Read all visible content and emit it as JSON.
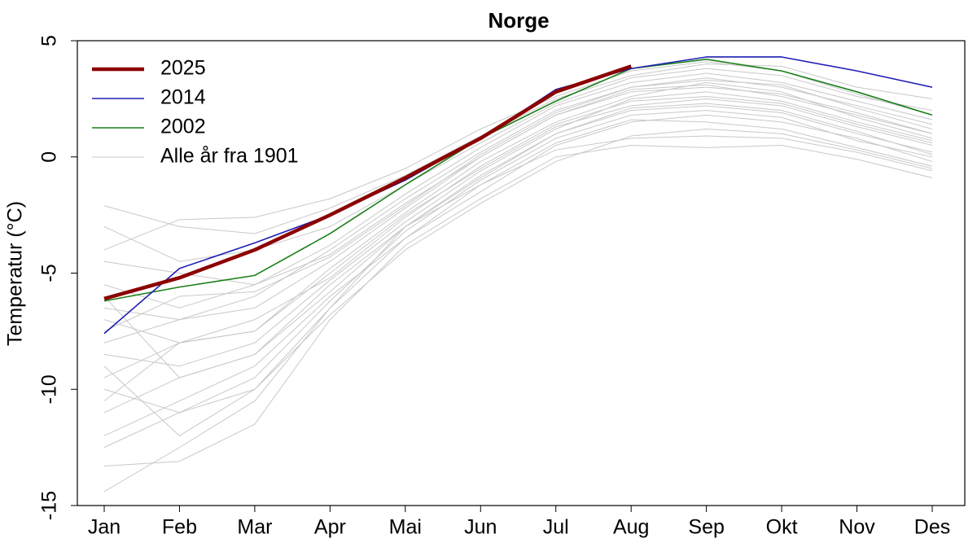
{
  "chart_data": {
    "type": "line",
    "title": "Norge",
    "y_label": "Temperatur (°C)",
    "categories": [
      "Jan",
      "Feb",
      "Mar",
      "Apr",
      "Mai",
      "Jun",
      "Jul",
      "Aug",
      "Sep",
      "Okt",
      "Nov",
      "Des"
    ],
    "ylim": [
      -15,
      5
    ],
    "yticks": [
      -15,
      -10,
      -5,
      0,
      5
    ],
    "legend": "top-left",
    "series": [
      {
        "name": "2025",
        "color": "#8b0000",
        "linewidth": 4.5,
        "values": [
          -6.1,
          -5.2,
          -4.0,
          -2.5,
          -0.9,
          0.8,
          2.8,
          3.9,
          null,
          null,
          null,
          null
        ]
      },
      {
        "name": "2014",
        "color": "#1f1fb4",
        "linewidth": 1.6,
        "values": [
          -7.6,
          -4.8,
          -3.7,
          -2.5,
          -1.0,
          0.8,
          2.9,
          3.8,
          4.3,
          4.3,
          3.7,
          3.0
        ]
      },
      {
        "name": "2002",
        "color": "#1a7f1a",
        "linewidth": 1.6,
        "values": [
          -6.2,
          -5.6,
          -5.1,
          -3.3,
          -1.2,
          0.8,
          2.4,
          3.8,
          4.2,
          3.7,
          2.8,
          1.8
        ]
      },
      {
        "name": "Alle år fra 1901",
        "color": "#c8c8c8",
        "linewidth": 1,
        "lines": [
          [
            -14.4,
            -12.5,
            -10.5,
            -6.5,
            -3.0,
            -1.2,
            0.3,
            0.8,
            0.9,
            0.8,
            0.2,
            -0.6
          ],
          [
            -13.3,
            -13.1,
            -11.5,
            -7.0,
            -3.8,
            -1.8,
            0.0,
            0.5,
            0.4,
            0.5,
            -0.1,
            -0.9
          ],
          [
            -12.0,
            -10.5,
            -9.0,
            -6.0,
            -3.5,
            -1.5,
            0.5,
            1.5,
            1.8,
            1.5,
            0.8,
            -0.2
          ],
          [
            -11.0,
            -9.5,
            -8.5,
            -5.5,
            -3.0,
            -0.8,
            1.0,
            2.0,
            2.2,
            1.9,
            1.0,
            0.2
          ],
          [
            -10.0,
            -11.0,
            -9.5,
            -6.2,
            -3.2,
            -1.0,
            0.8,
            1.8,
            2.0,
            1.7,
            0.7,
            0.0
          ],
          [
            -9.5,
            -8.0,
            -7.5,
            -5.0,
            -2.5,
            -0.5,
            1.3,
            2.2,
            2.5,
            2.2,
            1.3,
            0.5
          ],
          [
            -8.5,
            -9.0,
            -8.0,
            -5.3,
            -2.8,
            -0.6,
            1.2,
            2.5,
            2.8,
            2.4,
            1.5,
            0.7
          ],
          [
            -8.0,
            -7.0,
            -6.5,
            -4.5,
            -2.2,
            0.0,
            1.8,
            2.8,
            3.0,
            2.7,
            1.9,
            1.0
          ],
          [
            -7.0,
            -8.0,
            -7.5,
            -4.8,
            -2.4,
            -0.2,
            1.5,
            2.6,
            3.2,
            2.8,
            1.7,
            0.8
          ],
          [
            -6.5,
            -7.0,
            -6.0,
            -4.0,
            -1.8,
            0.2,
            2.0,
            3.0,
            3.4,
            3.0,
            2.2,
            1.4
          ],
          [
            -5.5,
            -6.5,
            -5.5,
            -4.2,
            -2.0,
            0.0,
            1.8,
            2.9,
            3.1,
            2.6,
            1.8,
            1.0
          ],
          [
            -4.5,
            -5.0,
            -5.5,
            -3.8,
            -1.6,
            0.4,
            2.2,
            3.2,
            3.6,
            3.2,
            2.4,
            1.6
          ],
          [
            -3.0,
            -4.5,
            -4.0,
            -3.0,
            -1.2,
            0.6,
            2.3,
            3.4,
            3.8,
            3.5,
            2.6,
            2.0
          ],
          [
            -2.1,
            -3.0,
            -3.3,
            -2.2,
            -0.8,
            0.9,
            2.5,
            3.5,
            4.0,
            3.9,
            3.0,
            2.5
          ],
          [
            -9.0,
            -12.0,
            -10.0,
            -6.5,
            -3.5,
            -1.2,
            0.6,
            1.6,
            1.5,
            1.2,
            0.4,
            -0.4
          ],
          [
            -12.5,
            -11.0,
            -10.0,
            -6.8,
            -4.0,
            -2.0,
            -0.2,
            0.9,
            1.2,
            1.0,
            0.3,
            -0.5
          ],
          [
            -10.5,
            -8.0,
            -7.0,
            -5.2,
            -2.6,
            -0.4,
            1.4,
            2.4,
            2.6,
            2.3,
            1.4,
            0.6
          ],
          [
            -7.5,
            -6.0,
            -5.8,
            -4.3,
            -2.1,
            0.1,
            1.9,
            3.0,
            3.3,
            3.1,
            2.1,
            1.2
          ],
          [
            -6.0,
            -9.5,
            -8.5,
            -5.8,
            -3.0,
            -0.9,
            1.0,
            2.1,
            2.3,
            2.0,
            1.1,
            0.1
          ],
          [
            -4.0,
            -2.7,
            -2.6,
            -1.8,
            -0.5,
            1.2,
            2.6,
            3.7,
            4.1,
            3.7,
            2.7,
            1.8
          ]
        ]
      }
    ]
  }
}
